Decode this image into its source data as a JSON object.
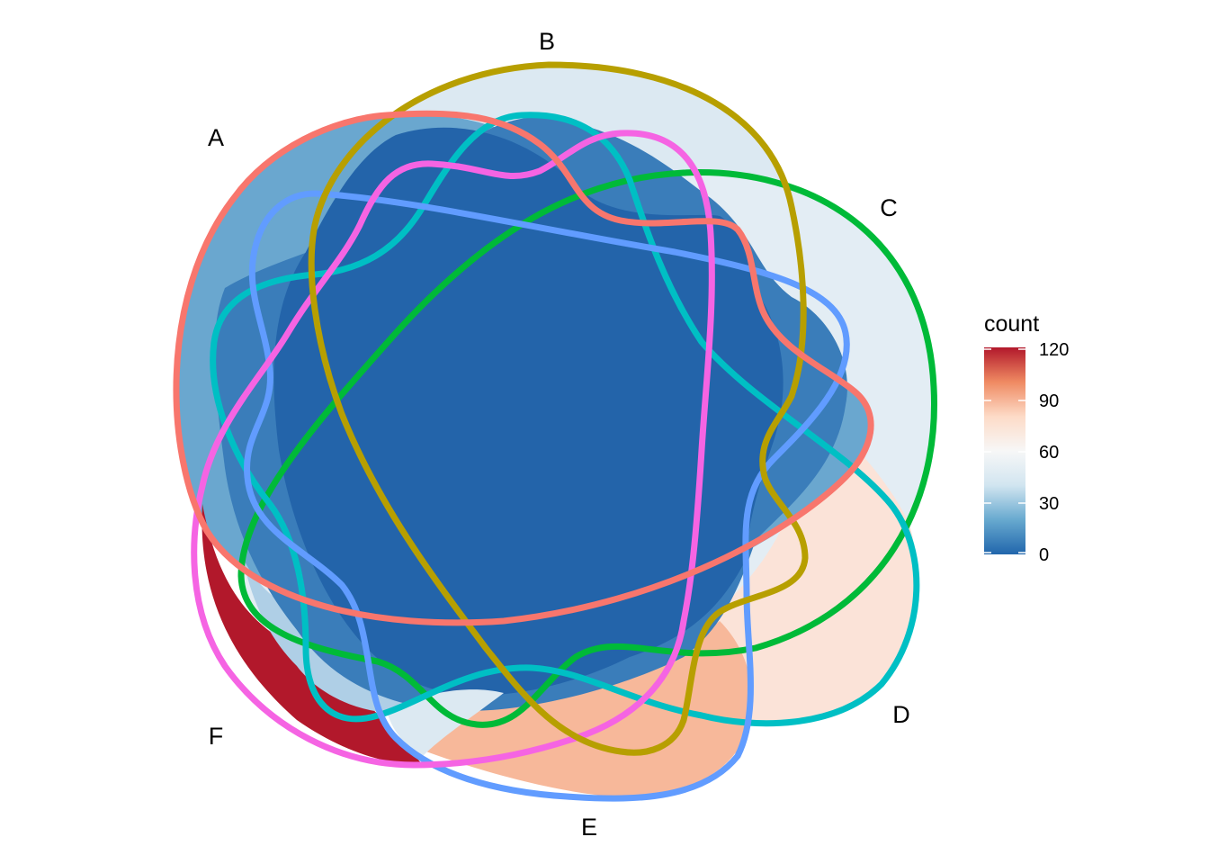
{
  "diagram": {
    "type": "venn",
    "sets": [
      {
        "id": "A",
        "label": "A",
        "color": "#F8766D"
      },
      {
        "id": "B",
        "label": "B",
        "color": "#B79F00"
      },
      {
        "id": "C",
        "label": "C",
        "color": "#00BA38"
      },
      {
        "id": "D",
        "label": "D",
        "color": "#00BFC4"
      },
      {
        "id": "E",
        "label": "E",
        "color": "#619CFF"
      },
      {
        "id": "F",
        "label": "F",
        "color": "#F564E3"
      }
    ],
    "fill_colors": {
      "core": "#2364AA",
      "mid": "#3A7DBA",
      "light_blue": "#6AA7CF",
      "pale_blue": "#AFCFE6",
      "very_pale": "#DCE9F2",
      "pale_c": "#E3EDF4",
      "pale_d": "#FBE3D8",
      "pink_e": "#F7B89A",
      "red_f": "#B2182B"
    },
    "legend": {
      "title": "count",
      "ticks": [
        "120",
        "90",
        "60",
        "30",
        "0"
      ],
      "min": 0,
      "max": 120,
      "gradient": [
        "#B2182B",
        "#EF8A62",
        "#FDDBC7",
        "#F7F7F7",
        "#D1E5F0",
        "#67A9CF",
        "#2166AC"
      ]
    }
  }
}
